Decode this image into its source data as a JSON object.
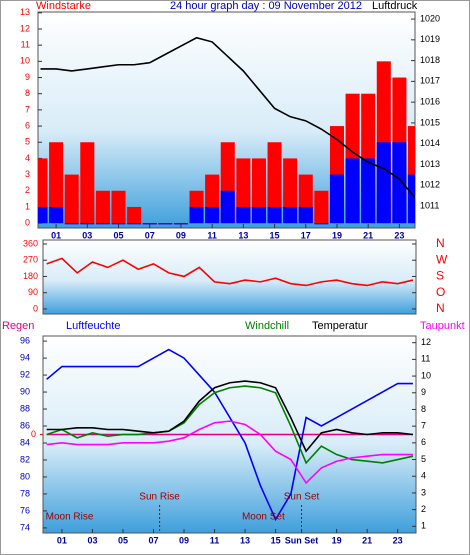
{
  "chart_data": [
    {
      "type": "combo",
      "title": "24 hour graph day : 09 November 2012",
      "ylabel": "Windstarke",
      "y2label": "Luftdruck",
      "x": [
        0,
        1,
        2,
        3,
        4,
        5,
        6,
        7,
        8,
        9,
        10,
        11,
        12,
        13,
        14,
        15,
        16,
        17,
        18,
        19,
        20,
        21,
        22,
        23,
        24
      ],
      "xlim": [
        -0.16,
        24
      ],
      "xticks": [
        {
          "value": 1,
          "label": "01"
        },
        {
          "value": 3,
          "label": "03"
        },
        {
          "value": 5,
          "label": "05"
        },
        {
          "value": 7,
          "label": "07"
        },
        {
          "value": 9,
          "label": "09"
        },
        {
          "value": 11,
          "label": "11"
        },
        {
          "value": 13,
          "label": "13"
        },
        {
          "value": 15,
          "label": "15"
        },
        {
          "value": 17,
          "label": "17"
        },
        {
          "value": 19,
          "label": "19"
        },
        {
          "value": 21,
          "label": "21"
        },
        {
          "value": 23,
          "label": "23"
        }
      ],
      "ylim": [
        -0.3,
        13.05
      ],
      "yticks": [
        0,
        1,
        2,
        3,
        4,
        5,
        6,
        7,
        8,
        9,
        10,
        11,
        12,
        13
      ],
      "ytick_color": "#ff0000",
      "y2lim": [
        1009.94,
        1020.34
      ],
      "y2ticks": [
        1011,
        1012,
        1013,
        1014,
        1015,
        1016,
        1017,
        1018,
        1019,
        1020
      ],
      "y2tick_color": "#000000",
      "series": [
        {
          "style": "bar",
          "color": "#ff0000",
          "values": [
            4,
            5,
            3,
            5,
            2,
            2,
            1,
            0,
            0,
            0,
            2,
            3,
            5,
            4,
            4,
            5,
            4,
            3,
            2,
            6,
            8,
            8,
            10,
            9,
            6
          ]
        },
        {
          "style": "bar",
          "color": "#0000ff",
          "values": [
            1,
            1,
            0,
            0,
            0,
            0,
            0,
            0,
            0,
            0,
            1,
            1,
            2,
            1,
            1,
            1,
            1,
            1,
            0,
            3,
            4,
            4,
            5,
            5,
            3
          ]
        },
        {
          "style": "line",
          "axis": "y2",
          "color": "#000000",
          "values": [
            1017.6,
            1017.6,
            1017.5,
            1017.6,
            1017.7,
            1017.8,
            1017.8,
            1017.9,
            1018.3,
            1018.7,
            1019.1,
            1018.9,
            1018.2,
            1017.5,
            1016.6,
            1015.7,
            1015.3,
            1015.1,
            1014.7,
            1014.2,
            1013.6,
            1013.1,
            1012.8,
            1012.3,
            1011.4
          ]
        }
      ]
    },
    {
      "type": "line",
      "x": [
        0,
        1,
        2,
        3,
        4,
        5,
        6,
        7,
        8,
        9,
        10,
        11,
        12,
        13,
        14,
        15,
        16,
        17,
        18,
        19,
        20,
        21,
        22,
        23,
        24
      ],
      "xlim": [
        -0.24,
        24.2
      ],
      "ylim": [
        -28,
        382
      ],
      "yticks": [
        0,
        90,
        180,
        270,
        360
      ],
      "ytick_color": "#ff0000",
      "y2lim": [
        -28,
        382
      ],
      "y2ticks": [
        {
          "value": 360,
          "label": "N"
        },
        {
          "value": 270,
          "label": "W"
        },
        {
          "value": 180,
          "label": "S"
        },
        {
          "value": 90,
          "label": "O"
        },
        {
          "value": 0,
          "label": "N"
        }
      ],
      "y2tick_color": "#ff0000",
      "series": [
        {
          "style": "line",
          "color": "#ff0000",
          "values": [
            250,
            280,
            200,
            260,
            230,
            270,
            220,
            250,
            200,
            180,
            230,
            150,
            140,
            160,
            150,
            170,
            140,
            130,
            150,
            160,
            140,
            130,
            150,
            140,
            160
          ]
        }
      ]
    },
    {
      "type": "line",
      "x": [
        0,
        1,
        2,
        3,
        4,
        5,
        6,
        7,
        8,
        9,
        10,
        11,
        12,
        13,
        14,
        15,
        16,
        17,
        18,
        19,
        20,
        21,
        22,
        23,
        24
      ],
      "xlim": [
        -0.24,
        24.2
      ],
      "xticks": [
        {
          "value": 1,
          "label": "01"
        },
        {
          "value": 3,
          "label": "03"
        },
        {
          "value": 5,
          "label": "05"
        },
        {
          "value": 7,
          "label": "07"
        },
        {
          "value": 9,
          "label": "09"
        },
        {
          "value": 11,
          "label": "11"
        },
        {
          "value": 13,
          "label": "13"
        },
        {
          "value": 15,
          "label": "15"
        },
        {
          "value": 16.7,
          "label": "Sun Set"
        },
        {
          "value": 19,
          "label": "19"
        },
        {
          "value": 21,
          "label": "21"
        },
        {
          "value": 23,
          "label": "23"
        }
      ],
      "ylim": [
        73.4,
        96.6
      ],
      "yticks": [
        74,
        76,
        78,
        80,
        82,
        84,
        86,
        88,
        90,
        92,
        94,
        96
      ],
      "ytick_color": "#0000c0",
      "y2lim": [
        0.6,
        12.4
      ],
      "y2ticks": [
        1,
        2,
        3,
        4,
        5,
        6,
        7,
        8,
        9,
        10,
        11,
        12
      ],
      "y2tick_color": "#000000",
      "y3lim": [
        -1,
        1
      ],
      "y3ticks": [
        0
      ],
      "y3tick_color": "#ff0000",
      "series": [
        {
          "name": "Regen",
          "style": "line",
          "axis": "y3",
          "color": "#e0007f",
          "values": [
            0,
            0,
            0,
            0,
            0,
            0,
            0,
            0,
            0,
            0,
            0,
            0,
            0,
            0,
            0,
            0,
            0,
            0,
            0,
            0,
            0,
            0,
            0,
            0,
            0
          ]
        },
        {
          "name": "Luftfeuchte",
          "style": "line",
          "color": "#0000ff",
          "values": [
            91.5,
            93,
            93,
            93,
            93,
            93,
            93,
            94,
            95,
            94,
            92,
            90,
            87,
            84,
            79,
            75,
            78,
            87,
            86,
            87,
            88,
            89,
            90,
            91,
            91
          ]
        },
        {
          "name": "Windchill",
          "style": "line",
          "axis": "y2",
          "color": "#008000",
          "values": [
            6.5,
            6.8,
            6.3,
            6.6,
            6.4,
            6.5,
            6.5,
            6.6,
            6.7,
            7.2,
            8.3,
            9.0,
            9.3,
            9.4,
            9.3,
            9.0,
            7.0,
            4.8,
            5.8,
            5.3,
            5.0,
            4.9,
            4.8,
            5.0,
            5.2
          ]
        },
        {
          "name": "Temperatur",
          "style": "line",
          "axis": "y2",
          "color": "#000000",
          "values": [
            6.8,
            6.8,
            6.9,
            6.9,
            6.8,
            6.8,
            6.7,
            6.6,
            6.7,
            7.3,
            8.5,
            9.3,
            9.6,
            9.7,
            9.6,
            9.3,
            7.5,
            5.5,
            6.6,
            6.8,
            6.6,
            6.5,
            6.6,
            6.6,
            6.5
          ]
        },
        {
          "name": "Taupunkt",
          "style": "line",
          "axis": "y2",
          "color": "#ff00ff",
          "values": [
            5.9,
            6.0,
            5.9,
            5.9,
            5.9,
            6.0,
            6.0,
            6.0,
            6.1,
            6.3,
            6.8,
            7.2,
            7.3,
            7.1,
            6.5,
            5.5,
            5.0,
            3.6,
            4.5,
            4.9,
            5.1,
            5.2,
            5.3,
            5.3,
            5.3
          ]
        }
      ],
      "annotations": [
        {
          "text": "Moon Rise",
          "x": 1.5
        },
        {
          "text": "Sun Rise",
          "x": 7.4
        },
        {
          "text": "Moon Set",
          "x": 14.2
        },
        {
          "text": "Sun Set",
          "x": 16.7
        }
      ]
    }
  ]
}
